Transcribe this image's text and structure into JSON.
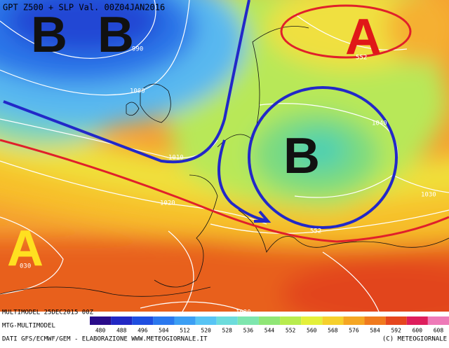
{
  "header": {
    "title": "GPT Z500 + SLP Val. 00Z04JAN2016"
  },
  "pressure_centers": [
    "B",
    "B",
    "A",
    "B",
    "A"
  ],
  "contour_labels": [
    "990",
    "1000",
    "1010",
    "1020",
    "030",
    "1040",
    "1030",
    "552",
    "552",
    "1020"
  ],
  "footer": {
    "run": "MULTIMODEL 25DEC2015 00Z",
    "model": "MTG-MULTIMODEL",
    "credits": "DATI GFS/ECMWF/GEM - ELABORAZIONE WWW.METEOGIORNALE.IT",
    "copyright": "(C) METEOGIORNALE"
  },
  "scale": [
    {
      "value": 480,
      "color": "#2a0c8a"
    },
    {
      "value": 488,
      "color": "#2228c4"
    },
    {
      "value": 496,
      "color": "#1f4ee0"
    },
    {
      "value": 504,
      "color": "#2b78ee"
    },
    {
      "value": 512,
      "color": "#3c9ff4"
    },
    {
      "value": 520,
      "color": "#58c4f4"
    },
    {
      "value": 528,
      "color": "#6ddcdc"
    },
    {
      "value": 536,
      "color": "#7ee6ae"
    },
    {
      "value": 544,
      "color": "#90e676"
    },
    {
      "value": 552,
      "color": "#b8ec4e"
    },
    {
      "value": 560,
      "color": "#e4f03a"
    },
    {
      "value": 568,
      "color": "#f6d02c"
    },
    {
      "value": 576,
      "color": "#f5a623"
    },
    {
      "value": 584,
      "color": "#f07a1e"
    },
    {
      "value": 592,
      "color": "#e5461e"
    },
    {
      "value": 600,
      "color": "#de1e5c"
    },
    {
      "value": 608,
      "color": "#ee7ab8"
    }
  ]
}
